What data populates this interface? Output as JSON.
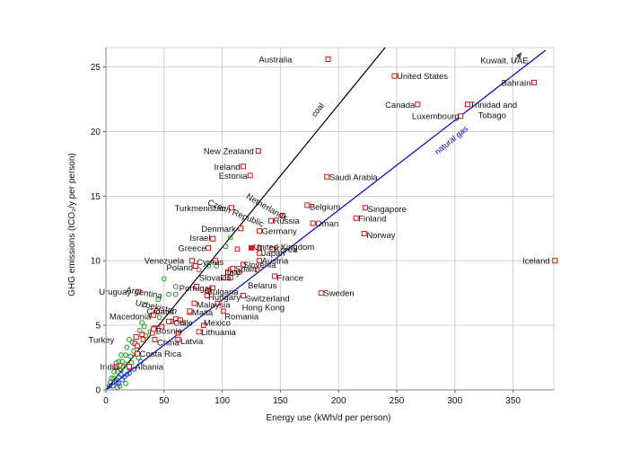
{
  "chart_data": {
    "type": "scatter",
    "xlabel": "Energy use (kWh/d per person)",
    "ylabel": "GHG emissions (tCO₂/y per person)",
    "xlim": [
      0,
      385
    ],
    "ylim": [
      0,
      26.5
    ],
    "xticks": [
      0,
      50,
      100,
      150,
      200,
      250,
      300,
      350
    ],
    "yticks": [
      0,
      5,
      10,
      15,
      20,
      25
    ],
    "grid": true,
    "lines": [
      {
        "label": "coal",
        "color": "#000000",
        "points": [
          [
            0,
            0
          ],
          [
            240,
            26.5
          ]
        ],
        "label_at": [
          180,
          21.1
        ],
        "label_angle": -52
      },
      {
        "label": "natural gas",
        "color": "#0000cc",
        "points": [
          [
            0,
            0
          ],
          [
            378,
            26.3
          ]
        ],
        "label_at": [
          285,
          18.2
        ],
        "label_angle": -39,
        "arrow_label": "Kuwait, UAE",
        "arrow_label_at": [
          322,
          25.3
        ],
        "arrow_from": [
          351,
          25.4
        ],
        "arrow_to": [
          357,
          26.1
        ]
      }
    ],
    "points": [
      {
        "name": "Australia",
        "x": 191,
        "y": 25.6,
        "lx": 160,
        "ly": 25.6,
        "anchor": "end"
      },
      {
        "name": "United States",
        "x": 248,
        "y": 24.3,
        "lx": 250,
        "ly": 24.3,
        "anchor": "start"
      },
      {
        "name": "Bahrain",
        "x": 368,
        "y": 23.8,
        "lx": 340,
        "ly": 23.8,
        "anchor": "start"
      },
      {
        "name": "Canada",
        "x": 268,
        "y": 22.1,
        "lx": 240,
        "ly": 22.1,
        "anchor": "start"
      },
      {
        "name": "Trinidad and",
        "x": 311,
        "y": 22.1,
        "lx": 313,
        "ly": 22.1,
        "anchor": "start"
      },
      {
        "name": "Tobago",
        "x": null,
        "y": null,
        "lx": 320,
        "ly": 21.3,
        "anchor": "start"
      },
      {
        "name": "Luxembourg",
        "x": 305,
        "y": 21.2,
        "lx": 263,
        "ly": 21.2,
        "anchor": "start"
      },
      {
        "name": "New Zealand",
        "x": 131,
        "y": 18.5,
        "lx": 84,
        "ly": 18.5,
        "anchor": "start"
      },
      {
        "name": "Ireland",
        "x": 118,
        "y": 17.3,
        "lx": 93,
        "ly": 17.3,
        "anchor": "start"
      },
      {
        "name": "Estonia",
        "x": 124,
        "y": 16.6,
        "lx": 97,
        "ly": 16.6,
        "anchor": "start"
      },
      {
        "name": "Saudi Arabia",
        "x": 190,
        "y": 16.5,
        "lx": 192,
        "ly": 16.5,
        "anchor": "start"
      },
      {
        "name": "Singapore",
        "x": 223,
        "y": 14.1,
        "lx": 225,
        "ly": 14.0,
        "anchor": "start"
      },
      {
        "name": "Belgium",
        "x": 173,
        "y": 14.3,
        "lx": 175,
        "ly": 14.2,
        "anchor": "start"
      },
      {
        "name": "Finland",
        "x": 215,
        "y": 13.3,
        "lx": 217,
        "ly": 13.3,
        "anchor": "start"
      },
      {
        "name": "Russia",
        "x": 142,
        "y": 13.1,
        "lx": 144,
        "ly": 13.1,
        "anchor": "start"
      },
      {
        "name": "Oman",
        "x": 178,
        "y": 12.9,
        "lx": 180,
        "ly": 12.9,
        "anchor": "start"
      },
      {
        "name": "Germany",
        "x": 132,
        "y": 12.3,
        "lx": 134,
        "ly": 12.3,
        "anchor": "start"
      },
      {
        "name": "Denmark",
        "x": 116,
        "y": 12.5,
        "lx": 82,
        "ly": 12.5,
        "anchor": "start"
      },
      {
        "name": "Norway",
        "x": 222,
        "y": 12.1,
        "lx": 224,
        "ly": 12.0,
        "anchor": "start"
      },
      {
        "name": "Israel",
        "x": 92,
        "y": 11.7,
        "lx": 72,
        "ly": 11.8,
        "anchor": "start"
      },
      {
        "name": "Greece",
        "x": 88,
        "y": 11.0,
        "lx": 62,
        "ly": 11.0,
        "anchor": "start"
      },
      {
        "name": "Korea",
        "x": 143,
        "y": 10.9,
        "lx": 145,
        "ly": 10.9,
        "anchor": "start"
      },
      {
        "name": "Japan",
        "x": 132,
        "y": 10.6,
        "lx": 134,
        "ly": 10.6,
        "anchor": "start"
      },
      {
        "name": "Austria",
        "x": 132,
        "y": 10.0,
        "lx": 134,
        "ly": 10.0,
        "anchor": "start"
      },
      {
        "name": "Iceland",
        "x": 386,
        "y": 10.0,
        "lx": 358,
        "ly": 10.0,
        "anchor": "start"
      },
      {
        "name": "Slovenia",
        "x": 118,
        "y": 9.7,
        "lx": 118,
        "ly": 9.7,
        "anchor": "start"
      },
      {
        "name": "Spain",
        "x": 109,
        "y": 9.4,
        "lx": 111,
        "ly": 9.4,
        "anchor": "start"
      },
      {
        "name": "Italy",
        "x": 105,
        "y": 9.1,
        "lx": 102,
        "ly": 9.1,
        "anchor": "start"
      },
      {
        "name": "Poland",
        "x": 77,
        "y": 9.6,
        "lx": 52,
        "ly": 9.5,
        "anchor": "start"
      },
      {
        "name": "France",
        "x": 145,
        "y": 8.8,
        "lx": 147,
        "ly": 8.7,
        "anchor": "start"
      },
      {
        "name": "Slovakia",
        "x": 107,
        "y": 8.7,
        "lx": 80,
        "ly": 8.7,
        "anchor": "start"
      },
      {
        "name": "Belarus",
        "x": null,
        "y": null,
        "lx": 122,
        "ly": 8.1,
        "anchor": "start"
      },
      {
        "name": "Portugal",
        "x": 78,
        "y": 8.0,
        "lx": 63,
        "ly": 7.9,
        "anchor": "start"
      },
      {
        "name": "Uruguay",
        "x": 28,
        "y": 7.6,
        "lx": -6,
        "ly": 7.6,
        "anchor": "start"
      },
      {
        "name": "Sweden",
        "x": 185,
        "y": 7.5,
        "lx": 187,
        "ly": 7.5,
        "anchor": "start"
      },
      {
        "name": "Bulgaria",
        "x": 88,
        "y": 7.7,
        "lx": 87,
        "ly": 7.6,
        "anchor": "start"
      },
      {
        "name": "Hungary",
        "x": 87,
        "y": 7.3,
        "lx": 88,
        "ly": 7.2,
        "anchor": "start"
      },
      {
        "name": "Switzerland",
        "x": 118,
        "y": 7.3,
        "lx": 120,
        "ly": 7.1,
        "anchor": "start"
      },
      {
        "name": "Malaysia",
        "x": 76,
        "y": 6.7,
        "lx": 78,
        "ly": 6.6,
        "anchor": "start"
      },
      {
        "name": "Hong Kong",
        "x": null,
        "y": null,
        "lx": 117,
        "ly": 6.4,
        "anchor": "start"
      },
      {
        "name": "Croatia",
        "x": 44,
        "y": 6.1,
        "lx": 35,
        "ly": 6.1,
        "anchor": "start"
      },
      {
        "name": "Malta",
        "x": 72,
        "y": 6.1,
        "lx": 74,
        "ly": 6.0,
        "anchor": "start"
      },
      {
        "name": "Macedonia",
        "x": 41,
        "y": 5.8,
        "lx": 3,
        "ly": 5.7,
        "anchor": "start"
      },
      {
        "name": "Romania",
        "x": null,
        "y": null,
        "lx": 102,
        "ly": 5.7,
        "anchor": "start"
      },
      {
        "name": "Chile",
        "x": 54,
        "y": 5.3,
        "lx": 58,
        "ly": 5.2,
        "anchor": "start"
      },
      {
        "name": "Mexico",
        "x": 64,
        "y": 5.4,
        "lx": 84,
        "ly": 5.2,
        "anchor": "start"
      },
      {
        "name": "Bosnia",
        "x": 41,
        "y": 4.7,
        "lx": 43,
        "ly": 4.6,
        "anchor": "start"
      },
      {
        "name": "Lithuania",
        "x": 80,
        "y": 4.5,
        "lx": 82,
        "ly": 4.5,
        "anchor": "start"
      },
      {
        "name": "Turkey",
        "x": 26,
        "y": 4.1,
        "lx": -15,
        "ly": 3.9,
        "anchor": "start"
      },
      {
        "name": "China",
        "x": 42,
        "y": 3.9,
        "lx": 44,
        "ly": 3.7,
        "anchor": "start"
      },
      {
        "name": "Latvia",
        "x": 62,
        "y": 3.9,
        "lx": 64,
        "ly": 3.8,
        "anchor": "start"
      },
      {
        "name": "Costa Rica",
        "x": 27,
        "y": 2.8,
        "lx": 29,
        "ly": 2.8,
        "anchor": "start"
      },
      {
        "name": "India",
        "x": 9,
        "y": 1.8,
        "lx": -5,
        "ly": 1.8,
        "anchor": "start"
      },
      {
        "name": "Albania",
        "x": 20,
        "y": 1.8,
        "lx": 25,
        "ly": 1.8,
        "anchor": "start"
      },
      {
        "name": "Turkmenistan",
        "x": 108,
        "y": 14.1,
        "lx": 59,
        "ly": 14.1,
        "anchor": "start"
      },
      {
        "name": "Venezuela",
        "x": 74,
        "y": 10.0,
        "lx": 33,
        "ly": 10.0,
        "anchor": "start"
      },
      {
        "name": "Cyprus",
        "x": 94,
        "y": 10.0,
        "lx": 78,
        "ly": 9.9,
        "anchor": "start"
      },
      {
        "name": "United Kingdom",
        "x": 125,
        "y": 11.0,
        "lx": 127,
        "ly": 11.1,
        "anchor": "start"
      },
      {
        "name": "Czech Republic",
        "x": null,
        "y": null,
        "lx": 87,
        "ly": 14.6,
        "anchor": "start",
        "angle": 22
      },
      {
        "name": "Netherlands",
        "x": 152,
        "y": 13.5,
        "lx": 120,
        "ly": 15.1,
        "anchor": "start",
        "angle": 30
      },
      {
        "name": "Argentina",
        "x": null,
        "y": null,
        "lx": 17,
        "ly": 7.8,
        "anchor": "start",
        "angle": 10
      },
      {
        "name": "Uzbekistan",
        "x": null,
        "y": null,
        "lx": 25,
        "ly": 6.8,
        "anchor": "start",
        "angle": 12
      }
    ],
    "extra_red_points": [
      [
        60,
        5.5
      ],
      [
        56,
        5.3
      ],
      [
        48,
        4.9
      ],
      [
        42,
        4.8
      ],
      [
        40,
        4.4
      ],
      [
        31,
        4.3
      ],
      [
        32,
        3.9
      ],
      [
        25,
        3.6
      ],
      [
        27,
        3.4
      ],
      [
        62,
        4.4
      ],
      [
        92,
        7.9
      ],
      [
        101,
        8.7
      ],
      [
        107,
        9.3
      ],
      [
        114,
        9.1
      ],
      [
        132,
        11.0
      ],
      [
        130,
        9.3
      ],
      [
        113,
        10.9
      ],
      [
        84,
        5.0
      ],
      [
        96,
        6.7
      ],
      [
        101,
        6.1
      ],
      [
        87,
        7.6
      ],
      [
        72,
        6.0
      ],
      [
        66,
        5.2
      ]
    ],
    "country_points_other": [
      [
        108,
        14.1
      ],
      [
        107,
        11.8
      ],
      [
        103,
        11.1
      ],
      [
        94,
        10.0
      ],
      [
        74,
        10.0
      ],
      [
        95,
        9.6
      ],
      [
        88,
        9.6
      ],
      [
        80,
        9.3
      ],
      [
        60,
        8.0
      ],
      [
        50,
        8.6
      ],
      [
        60,
        7.4
      ],
      [
        45,
        7.0
      ],
      [
        54,
        7.4
      ],
      [
        33,
        6.6
      ],
      [
        39,
        5.8
      ],
      [
        46,
        5.6
      ],
      [
        31,
        5.2
      ],
      [
        33,
        4.9
      ],
      [
        29,
        4.6
      ],
      [
        38,
        4.5
      ],
      [
        34,
        4.2
      ],
      [
        26,
        4.1
      ],
      [
        20,
        3.9
      ],
      [
        23,
        3.7
      ],
      [
        18,
        3.3
      ],
      [
        24,
        3.0
      ],
      [
        13,
        2.7
      ],
      [
        17,
        2.7
      ],
      [
        21,
        2.6
      ],
      [
        28,
        2.5
      ],
      [
        30,
        2.2
      ],
      [
        11,
        2.2
      ],
      [
        14,
        2.2
      ],
      [
        17,
        2.0
      ],
      [
        9,
        2.1
      ],
      [
        12,
        1.9
      ],
      [
        15,
        1.8
      ],
      [
        20,
        1.7
      ],
      [
        24,
        1.6
      ],
      [
        13,
        1.5
      ],
      [
        10,
        1.4
      ],
      [
        7,
        1.4
      ],
      [
        18,
        1.2
      ],
      [
        7,
        0.9
      ],
      [
        11,
        1.0
      ],
      [
        5,
        0.9
      ],
      [
        14,
        0.8
      ],
      [
        9,
        0.6
      ],
      [
        17,
        0.5
      ],
      [
        6,
        0.3
      ],
      [
        3,
        0.3
      ],
      [
        10,
        0.2
      ],
      [
        4,
        0.6
      ],
      [
        12,
        0.3
      ],
      [
        16,
        1.0
      ],
      [
        20,
        1.3
      ],
      [
        22,
        2.1
      ],
      [
        13,
        1.2
      ],
      [
        11,
        0.5
      ]
    ]
  }
}
